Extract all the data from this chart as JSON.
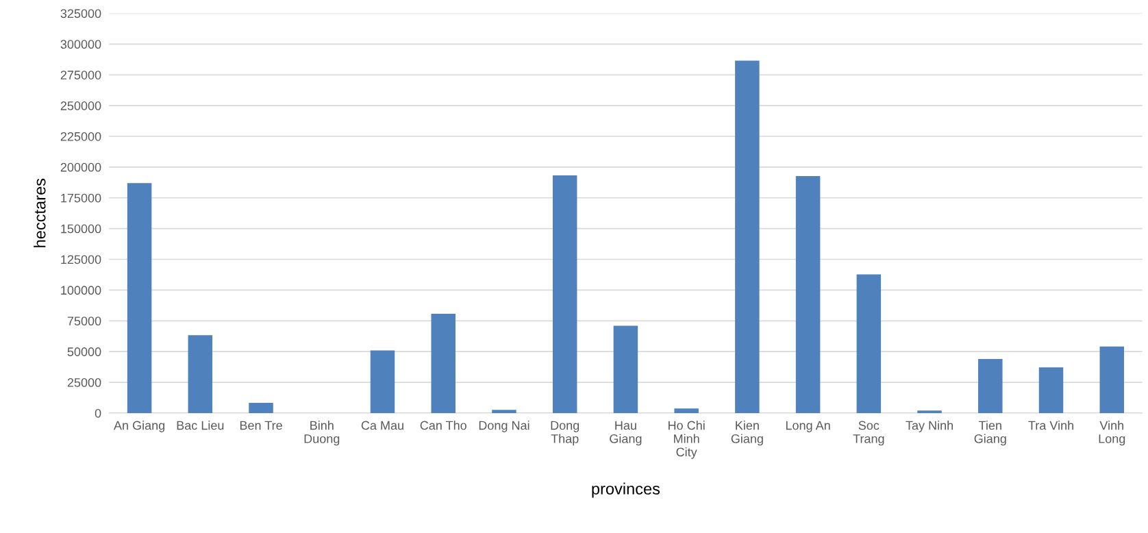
{
  "chart_data": {
    "type": "bar",
    "xlabel": "provinces",
    "ylabel": "hecctares",
    "categories": [
      "An Giang",
      "Bac Lieu",
      "Ben Tre",
      "Binh\nDuong",
      "Ca Mau",
      "Can Tho",
      "Dong Nai",
      "Dong\nThap",
      "Hau\nGiang",
      "Ho Chi\nMinh\nCity",
      "Kien\nGiang",
      "Long An",
      "Soc\nTrang",
      "Tay Ninh",
      "Tien\nGiang",
      "Tra Vinh",
      "Vinh\nLong"
    ],
    "values": [
      187000,
      63300,
      8300,
      0,
      50900,
      80800,
      2600,
      193300,
      71000,
      3800,
      286500,
      192700,
      112700,
      2000,
      44000,
      37100,
      54200
    ],
    "color": "#4f81bd",
    "ylim": [
      0,
      325000
    ],
    "yticks": [
      0,
      25000,
      50000,
      75000,
      100000,
      125000,
      150000,
      175000,
      200000,
      225000,
      250000,
      275000,
      300000,
      325000
    ],
    "grid": "y",
    "legend": false
  }
}
